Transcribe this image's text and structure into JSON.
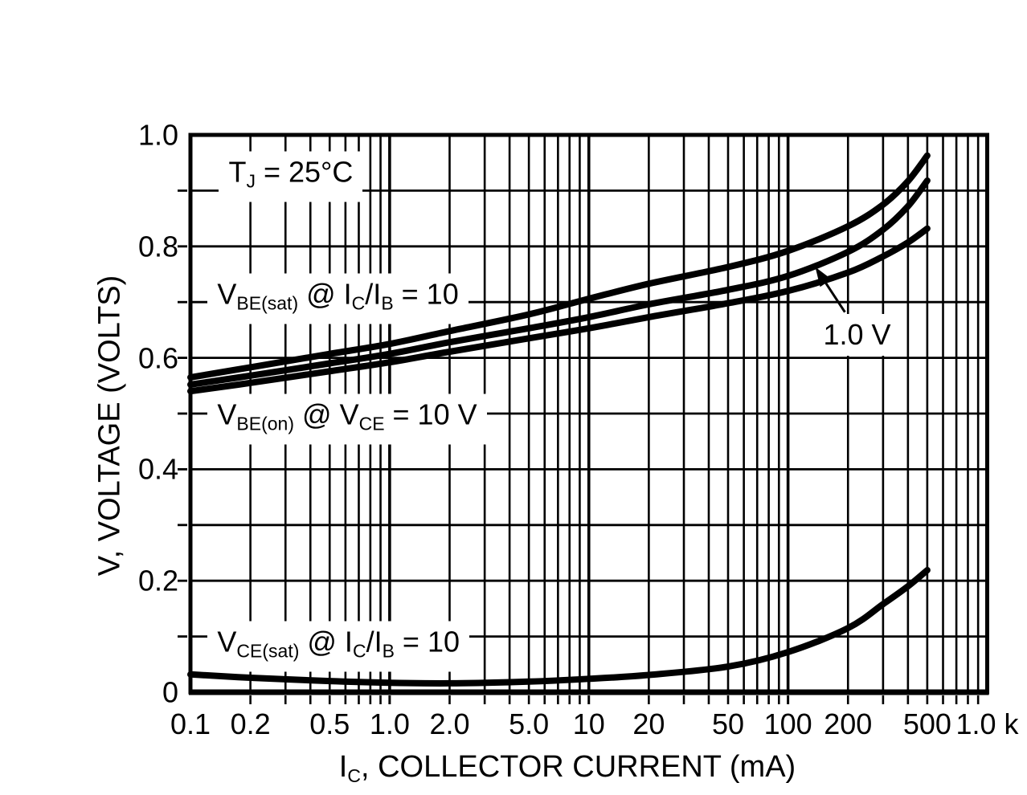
{
  "chart_data": {
    "type": "line",
    "x_scale": "log",
    "xlim": [
      0.1,
      1000
    ],
    "ylim": [
      0,
      1.0
    ],
    "xlabel_parts": [
      {
        "t": "I"
      },
      {
        "t": "C",
        "sub": true
      },
      {
        "t": ", COLLECTOR CURRENT (mA)"
      }
    ],
    "ylabel": "V, VOLTAGE (VOLTS)",
    "x_ticks": [
      {
        "value": 0.1,
        "label": "0.1"
      },
      {
        "value": 0.2,
        "label": "0.2"
      },
      {
        "value": 0.5,
        "label": "0.5"
      },
      {
        "value": 1,
        "label": "1.0"
      },
      {
        "value": 2,
        "label": "2.0"
      },
      {
        "value": 5,
        "label": "5.0"
      },
      {
        "value": 10,
        "label": "10"
      },
      {
        "value": 20,
        "label": "20"
      },
      {
        "value": 50,
        "label": "50"
      },
      {
        "value": 100,
        "label": "100"
      },
      {
        "value": 200,
        "label": "200"
      },
      {
        "value": 500,
        "label": "500"
      },
      {
        "value": 1000,
        "label": "1.0 k"
      }
    ],
    "y_ticks": [
      {
        "value": 1.0,
        "label": "1.0"
      },
      {
        "value": 0.8,
        "label": "0.8"
      },
      {
        "value": 0.6,
        "label": "0.6"
      },
      {
        "value": 0.4,
        "label": "0.4"
      },
      {
        "value": 0.2,
        "label": "0.2"
      },
      {
        "value": 0,
        "label": "0"
      }
    ],
    "grid": {
      "y_minor_step": 0.1,
      "x_log_minors": true,
      "style": "solid full grid"
    },
    "series": [
      {
        "id": "vbe-sat",
        "name": "VBE(sat) @ IC/IB = 10",
        "points": [
          [
            0.1,
            0.565
          ],
          [
            0.2,
            0.583
          ],
          [
            0.5,
            0.607
          ],
          [
            1,
            0.625
          ],
          [
            2,
            0.648
          ],
          [
            5,
            0.678
          ],
          [
            10,
            0.706
          ],
          [
            20,
            0.733
          ],
          [
            50,
            0.763
          ],
          [
            100,
            0.792
          ],
          [
            200,
            0.836
          ],
          [
            300,
            0.875
          ],
          [
            400,
            0.917
          ],
          [
            500,
            0.963
          ]
        ]
      },
      {
        "id": "vbe-on-1v",
        "name": "VBE(on) @ VCE = 1.0 V",
        "points": [
          [
            0.1,
            0.552
          ],
          [
            0.2,
            0.568
          ],
          [
            0.5,
            0.59
          ],
          [
            1,
            0.607
          ],
          [
            2,
            0.628
          ],
          [
            5,
            0.653
          ],
          [
            10,
            0.673
          ],
          [
            20,
            0.696
          ],
          [
            50,
            0.722
          ],
          [
            100,
            0.747
          ],
          [
            200,
            0.79
          ],
          [
            300,
            0.83
          ],
          [
            400,
            0.872
          ],
          [
            500,
            0.918
          ]
        ]
      },
      {
        "id": "vbe-on-10v",
        "name": "VBE(on) @ VCE = 10 V",
        "points": [
          [
            0.1,
            0.54
          ],
          [
            0.2,
            0.555
          ],
          [
            0.5,
            0.576
          ],
          [
            1,
            0.592
          ],
          [
            2,
            0.611
          ],
          [
            5,
            0.635
          ],
          [
            10,
            0.653
          ],
          [
            20,
            0.673
          ],
          [
            50,
            0.698
          ],
          [
            100,
            0.72
          ],
          [
            200,
            0.753
          ],
          [
            300,
            0.782
          ],
          [
            400,
            0.807
          ],
          [
            500,
            0.832
          ]
        ]
      },
      {
        "id": "vce-sat",
        "name": "VCE(sat) @ IC/IB = 10",
        "points": [
          [
            0.1,
            0.032
          ],
          [
            0.2,
            0.026
          ],
          [
            0.5,
            0.02
          ],
          [
            1,
            0.017
          ],
          [
            2,
            0.016
          ],
          [
            5,
            0.019
          ],
          [
            10,
            0.024
          ],
          [
            20,
            0.031
          ],
          [
            50,
            0.046
          ],
          [
            100,
            0.072
          ],
          [
            200,
            0.115
          ],
          [
            300,
            0.158
          ],
          [
            400,
            0.19
          ],
          [
            500,
            0.219
          ]
        ]
      }
    ],
    "annotations": [
      {
        "id": "tj",
        "x": 0.139,
        "y": 0.925,
        "align": "left",
        "parts": [
          {
            "t": "T"
          },
          {
            "t": "J",
            "sub": true
          },
          {
            "t": " = 25°C"
          }
        ]
      },
      {
        "id": "vbe-sat-label",
        "x": 0.122,
        "y": 0.706,
        "align": "left",
        "parts": [
          {
            "t": "V"
          },
          {
            "t": "BE(sat)",
            "sub": true
          },
          {
            "t": " @ I"
          },
          {
            "t": "C",
            "sub": true
          },
          {
            "t": "/I"
          },
          {
            "t": "B",
            "sub": true
          },
          {
            "t": " = 10"
          }
        ]
      },
      {
        "id": "vbe-on-label",
        "x": 0.122,
        "y": 0.49,
        "align": "left",
        "parts": [
          {
            "t": "V"
          },
          {
            "t": "BE(on)",
            "sub": true
          },
          {
            "t": " @ V"
          },
          {
            "t": "CE",
            "sub": true
          },
          {
            "t": " = 10 V"
          }
        ]
      },
      {
        "id": "vce-sat-label",
        "x": 0.122,
        "y": 0.082,
        "align": "left",
        "parts": [
          {
            "t": "V"
          },
          {
            "t": "CE(sat)",
            "sub": true
          },
          {
            "t": " @ I"
          },
          {
            "t": "C",
            "sub": true
          },
          {
            "t": "/I"
          },
          {
            "t": "B",
            "sub": true
          },
          {
            "t": " = 10"
          }
        ]
      },
      {
        "id": "v1",
        "x": 222,
        "y": 0.641,
        "align": "center",
        "parts": [
          {
            "t": "1.0 V"
          }
        ],
        "arrow": {
          "from": [
            193,
            0.682
          ],
          "to": [
            137,
            0.763
          ]
        }
      }
    ],
    "colors": {
      "ink": "#000000",
      "background": "#ffffff"
    }
  }
}
